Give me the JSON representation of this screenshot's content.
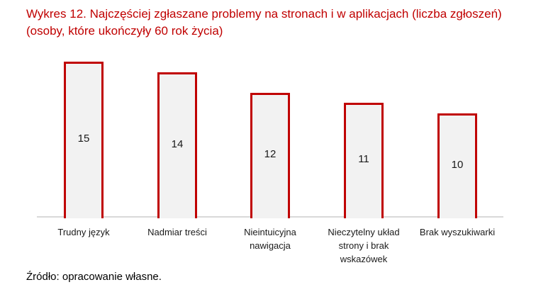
{
  "title": {
    "line1": "Wykres 12. Najczęściej zgłaszane problemy na stronach i w aplikacjach (liczba zgłoszeń)",
    "line2": "(osoby, które ukończyły 60 rok życia)"
  },
  "source": "Źródło: opracowanie własne.",
  "colors": {
    "bar_border": "#c00000",
    "bar_fill": "#f2f2f2",
    "title": "#c00000",
    "axis": "#d9d9d9"
  },
  "chart_data": {
    "type": "bar",
    "title": "Wykres 12. Najczęściej zgłaszane problemy na stronach i w aplikacjach (liczba zgłoszeń) (osoby, które ukończyły 60 rok życia)",
    "categories": [
      "Trudny język",
      "Nadmiar treści",
      "Nieintuicyjna nawigacja",
      "Nieczytelny układ strony i brak wskazówek",
      "Brak wyszukiwarki"
    ],
    "values": [
      15,
      14,
      12,
      11,
      10
    ],
    "xlabel": "",
    "ylabel": "",
    "grid": false,
    "legend": "none",
    "data_labels": true
  },
  "labels": {
    "cat0": [
      "Trudny język"
    ],
    "cat1": [
      "Nadmiar treści"
    ],
    "cat2a": "Nieintuicyjna",
    "cat2b": "nawigacja",
    "cat3a": "Nieczytelny układ",
    "cat3b": "strony i brak",
    "cat3c": "wskazówek",
    "cat4": "Brak wyszukiwarki"
  }
}
